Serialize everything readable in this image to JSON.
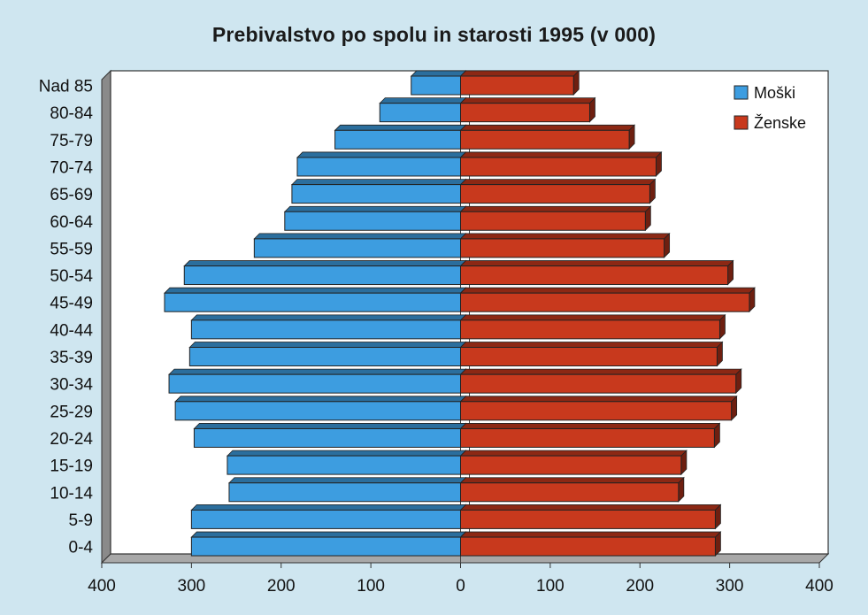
{
  "chart_data": {
    "type": "bar",
    "orientation": "horizontal",
    "title": "Prebivalstvo po spolu in starosti 1995 (v 000)",
    "categories": [
      "Nad 85",
      "80-84",
      "75-79",
      "70-74",
      "65-69",
      "60-64",
      "55-59",
      "50-54",
      "45-49",
      "40-44",
      "35-39",
      "30-34",
      "25-29",
      "20-24",
      "15-19",
      "10-14",
      "5-9",
      "0-4"
    ],
    "series": [
      {
        "name": "Moški",
        "color": "#3d9de0",
        "direction": "left",
        "values": [
          55,
          90,
          140,
          182,
          188,
          196,
          230,
          308,
          330,
          300,
          302,
          325,
          318,
          297,
          260,
          258,
          300,
          300
        ]
      },
      {
        "name": "Ženske",
        "color": "#c8391d",
        "direction": "right",
        "values": [
          126,
          144,
          188,
          218,
          211,
          206,
          227,
          298,
          322,
          289,
          286,
          307,
          302,
          283,
          246,
          243,
          284,
          284
        ]
      }
    ],
    "xlim": [
      -400,
      400
    ],
    "x_ticks": [
      {
        "value": -400,
        "label": "400"
      },
      {
        "value": -300,
        "label": "300"
      },
      {
        "value": -200,
        "label": "200"
      },
      {
        "value": -100,
        "label": "100"
      },
      {
        "value": 0,
        "label": "0"
      },
      {
        "value": 100,
        "label": "100"
      },
      {
        "value": 200,
        "label": "200"
      },
      {
        "value": 300,
        "label": "300"
      },
      {
        "value": 400,
        "label": "400"
      }
    ],
    "grid": false,
    "legend_position": "top-right"
  }
}
